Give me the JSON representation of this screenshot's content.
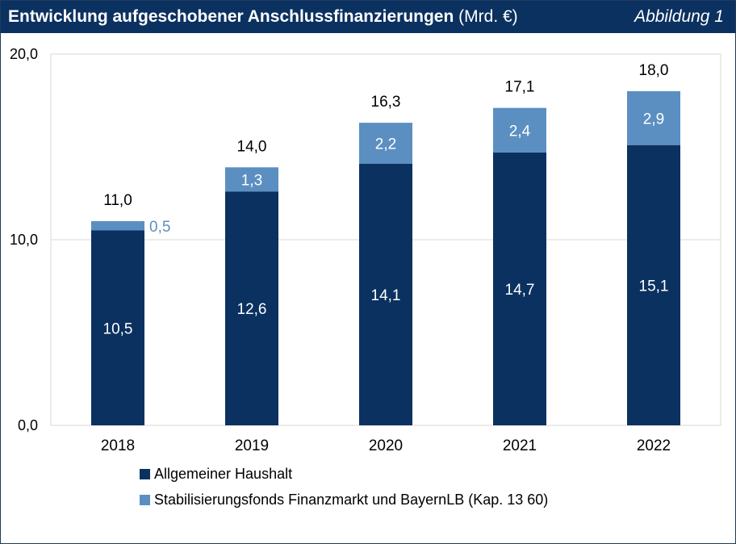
{
  "header": {
    "title_bold": "Entwicklung aufgeschobener Anschlussfinanzierungen",
    "title_unit": "(Mrd. €)",
    "figure_label": "Abbildung 1"
  },
  "colors": {
    "header_bg": "#0b3160",
    "series_dark": "#0b3160",
    "series_light": "#5b8fc2",
    "grid": "#d9d9d9"
  },
  "chart_data": {
    "type": "bar",
    "stacked": true,
    "title": "Entwicklung aufgeschobener Anschlussfinanzierungen (Mrd. €)",
    "categories": [
      "2018",
      "2019",
      "2020",
      "2021",
      "2022"
    ],
    "series": [
      {
        "name": "Allgemeiner Haushalt",
        "values": [
          10.5,
          12.6,
          14.1,
          14.7,
          15.1
        ],
        "labels": [
          "10,5",
          "12,6",
          "14,1",
          "14,7",
          "15,1"
        ]
      },
      {
        "name": "Stabilisierungsfonds Finanzmarkt und BayernLB (Kap. 13 60)",
        "values": [
          0.5,
          1.3,
          2.2,
          2.4,
          2.9
        ],
        "labels": [
          "0,5",
          "1,3",
          "2,2",
          "2,4",
          "2,9"
        ]
      }
    ],
    "totals": [
      11.0,
      14.0,
      16.3,
      17.1,
      18.0
    ],
    "total_labels": [
      "11,0",
      "14,0",
      "16,3",
      "17,1",
      "18,0"
    ],
    "ylim": [
      0,
      20
    ],
    "yticks": [
      0,
      10,
      20
    ],
    "ytick_labels": [
      "0,0",
      "10,0",
      "20,0"
    ],
    "xlabel": "",
    "ylabel": "",
    "legend_position": "bottom-left"
  }
}
